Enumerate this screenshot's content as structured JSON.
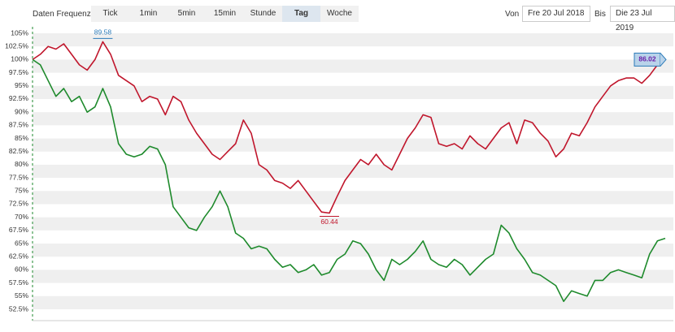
{
  "toolbar": {
    "label": "Daten Frequenz",
    "buttons": [
      "Tick",
      "1min",
      "5min",
      "15min",
      "Stunde",
      "Tag",
      "Woche"
    ],
    "active": "Tag",
    "from_label": "Von",
    "from": "Fre 20 Jul 2018",
    "to_label": "Bis",
    "to": "Die 23 Jul 2019"
  },
  "chart_data": {
    "type": "line",
    "categories": [
      null,
      null,
      null,
      null,
      null,
      null,
      null,
      null,
      null,
      null,
      null,
      null,
      null,
      null,
      null,
      null,
      null,
      null,
      null,
      null,
      null,
      null,
      null,
      null,
      null,
      null,
      null,
      null,
      null,
      null,
      null,
      null,
      null,
      null,
      null,
      null,
      null,
      null,
      null,
      null,
      null,
      null,
      null,
      null,
      null,
      null,
      null,
      null,
      null,
      null,
      null,
      null,
      null,
      null,
      null,
      null,
      null,
      null,
      null,
      null,
      null,
      null,
      null,
      null,
      null,
      null,
      null,
      null,
      null,
      null,
      null,
      null,
      null,
      null,
      null,
      null,
      null,
      null,
      null,
      null,
      null,
      null
    ],
    "series": [
      {
        "color": "#c0162c",
        "values": [
          100,
          101,
          102.5,
          102,
          103,
          101,
          99,
          98,
          100,
          103.4,
          101,
          97,
          96,
          95,
          92,
          93,
          92.5,
          89.5,
          93,
          92,
          88.5,
          86,
          84,
          82,
          81,
          82.5,
          84,
          88.5,
          86,
          80,
          79,
          77,
          76.5,
          75.5,
          77,
          75,
          73,
          71,
          70.8,
          74,
          77,
          79,
          81,
          80,
          82,
          80,
          79,
          82,
          85,
          87,
          89.5,
          89,
          84,
          83.5,
          84,
          83,
          85.5,
          84,
          83,
          85,
          87,
          88,
          84,
          88.5,
          88,
          86,
          84.5,
          81.5,
          83,
          86,
          85.5,
          88,
          91,
          93,
          95,
          96,
          96.5,
          96.5,
          95.5,
          97,
          99,
          100
        ]
      },
      {
        "color": "#1e8a2c",
        "values": [
          100,
          99,
          96,
          93,
          94.5,
          92,
          93,
          90,
          91,
          94.5,
          91,
          84,
          82,
          81.5,
          82,
          83.5,
          83,
          80,
          72,
          70,
          68,
          67.5,
          70,
          72,
          75,
          72,
          67,
          66,
          64,
          64.5,
          64,
          62,
          60.5,
          61,
          59.5,
          60,
          61,
          59,
          59.5,
          62,
          63,
          65.5,
          65,
          63,
          60,
          58,
          62,
          61,
          62,
          63.5,
          65.5,
          62,
          61,
          60.5,
          62,
          61,
          59,
          60.5,
          62,
          63,
          68.5,
          67,
          64,
          62,
          59.5,
          59,
          58,
          57,
          54,
          56,
          55.5,
          55,
          58,
          58,
          59.5,
          60,
          59.5,
          59,
          58.5,
          63,
          65.5,
          66
        ]
      }
    ],
    "annotations": {
      "max": "89.58",
      "min": "60.44",
      "last": "86.02"
    },
    "ylim": [
      50.34,
      106.24
    ],
    "yticks": [
      {
        "value": 105,
        "label": "105%"
      },
      {
        "value": 102.5,
        "label": "102.5%"
      },
      {
        "value": 100,
        "label": "100%"
      },
      {
        "value": 97.5,
        "label": "97.5%"
      },
      {
        "value": 95,
        "label": "95%"
      },
      {
        "value": 92.5,
        "label": "92.5%"
      },
      {
        "value": 90,
        "label": "90%"
      },
      {
        "value": 87.5,
        "label": "87.5%"
      },
      {
        "value": 85,
        "label": "85%"
      },
      {
        "value": 82.5,
        "label": "82.5%"
      },
      {
        "value": 80,
        "label": "80%"
      },
      {
        "value": 77.5,
        "label": "77.5%"
      },
      {
        "value": 75,
        "label": "75%"
      },
      {
        "value": 72.5,
        "label": "72.5%"
      },
      {
        "value": 70,
        "label": "70%"
      },
      {
        "value": 67.5,
        "label": "67.5%"
      },
      {
        "value": 65,
        "label": "65%"
      },
      {
        "value": 62.5,
        "label": "62.5%"
      },
      {
        "value": 60,
        "label": "60%"
      },
      {
        "value": 57.5,
        "label": "57.5%"
      },
      {
        "value": 55,
        "label": "55%"
      },
      {
        "value": 52.5,
        "label": "52.5%"
      }
    ],
    "grid": "bands"
  }
}
